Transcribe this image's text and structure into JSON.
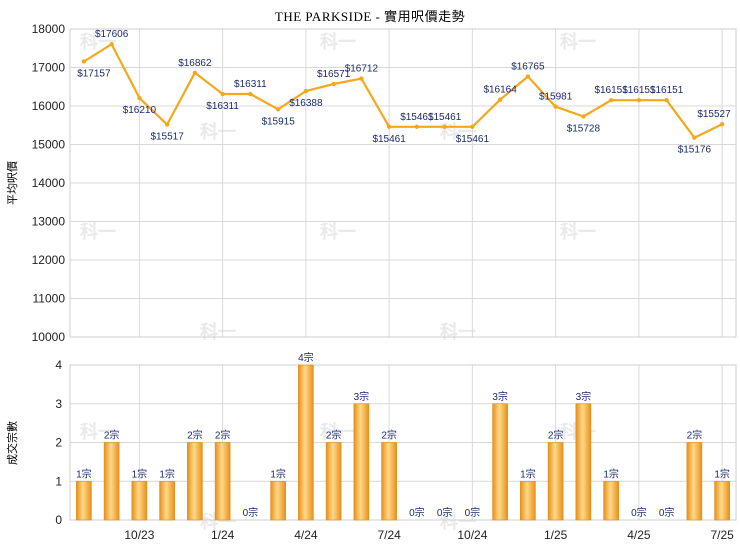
{
  "chart_data": [
    {
      "type": "line",
      "title": "THE PARKSIDE - 實用呎價走勢",
      "ylabel": "平均呎價",
      "ylim": [
        10000,
        18000
      ],
      "yticks": [
        10000,
        11000,
        12000,
        13000,
        14000,
        15000,
        16000,
        17000,
        18000
      ],
      "series": [
        {
          "values": [
            17157,
            17606,
            16210,
            15517,
            16862,
            16311,
            16311,
            15915,
            16388,
            16571,
            16712,
            15461,
            15461,
            15461,
            15461,
            16164,
            16765,
            15981,
            15728,
            16151,
            16151,
            16151,
            15176,
            15527
          ],
          "labels": [
            "$17157",
            "$17606",
            "$16210",
            "$15517",
            "$16862",
            "$16311",
            "$16311",
            "$15915",
            "$16388",
            "$16571",
            "$16712",
            "$15461",
            "$15461",
            "$15461",
            "$15461",
            "$16164",
            "$16765",
            "$15981",
            "$15728",
            "$16151",
            "$16151",
            "$16151",
            "$15176",
            "$15527"
          ],
          "color": "#f5a81c"
        }
      ]
    },
    {
      "type": "bar",
      "ylabel": "成交宗數",
      "ylim": [
        0,
        4
      ],
      "yticks": [
        "0",
        "1",
        "2",
        "3",
        "4"
      ],
      "categories": [
        "",
        "",
        "10/23",
        "",
        "",
        "1/24",
        "",
        "",
        "4/24",
        "",
        "",
        "7/24",
        "",
        "",
        "10/24",
        "",
        "",
        "1/25",
        "",
        "",
        "4/25",
        "",
        "",
        "7/25"
      ],
      "values": [
        1,
        2,
        1,
        1,
        2,
        2,
        0,
        1,
        4,
        2,
        3,
        2,
        0,
        0,
        0,
        3,
        1,
        2,
        3,
        1,
        0,
        0,
        2,
        1
      ],
      "labels": [
        "1宗",
        "2宗",
        "1宗",
        "1宗",
        "2宗",
        "2宗",
        "0宗",
        "1宗",
        "4宗",
        "2宗",
        "3宗",
        "2宗",
        "0宗",
        "0宗",
        "0宗",
        "3宗",
        "1宗",
        "2宗",
        "3宗",
        "1宗",
        "0宗",
        "0宗",
        "2宗",
        "1宗"
      ],
      "color": "#f3a51b"
    }
  ],
  "watermark": "科一"
}
